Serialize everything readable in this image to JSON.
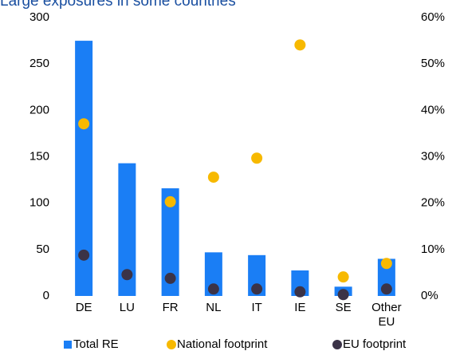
{
  "chart_data": {
    "type": "bar",
    "title": "Large exposures in some countries",
    "categories": [
      "DE",
      "LU",
      "FR",
      "NL",
      "IT",
      "IE",
      "SE",
      "Other EU"
    ],
    "series": [
      {
        "name": "Total RE",
        "type": "bar",
        "color": "#1a7ef5",
        "values": [
          275,
          143,
          116,
          47,
          44,
          27.5,
          10,
          40
        ]
      },
      {
        "name": "National footprint",
        "type": "scatter",
        "axis": "y2",
        "color": "#f7b900",
        "values": [
          37.1,
          null,
          20.3,
          25.6,
          29.7,
          54.1,
          4.1,
          7.0
        ]
      },
      {
        "name": "EU footprint",
        "type": "scatter",
        "axis": "y2",
        "color": "#3b3347",
        "values": [
          8.8,
          4.6,
          3.8,
          1.5,
          1.5,
          0.9,
          0.3,
          1.5
        ]
      }
    ],
    "ylim": [
      0,
      300
    ],
    "yticks": [
      0,
      50,
      100,
      150,
      200,
      250,
      300
    ],
    "y2lim": [
      0,
      60
    ],
    "y2ticks": [
      {
        "value": 0,
        "label": "0%"
      },
      {
        "value": 10,
        "label": "10%"
      },
      {
        "value": 20,
        "label": "20%"
      },
      {
        "value": 30,
        "label": "30%"
      },
      {
        "value": 40,
        "label": "40%"
      },
      {
        "value": 50,
        "label": "50%"
      },
      {
        "value": 60,
        "label": "60%"
      }
    ],
    "legend": "bottom"
  }
}
